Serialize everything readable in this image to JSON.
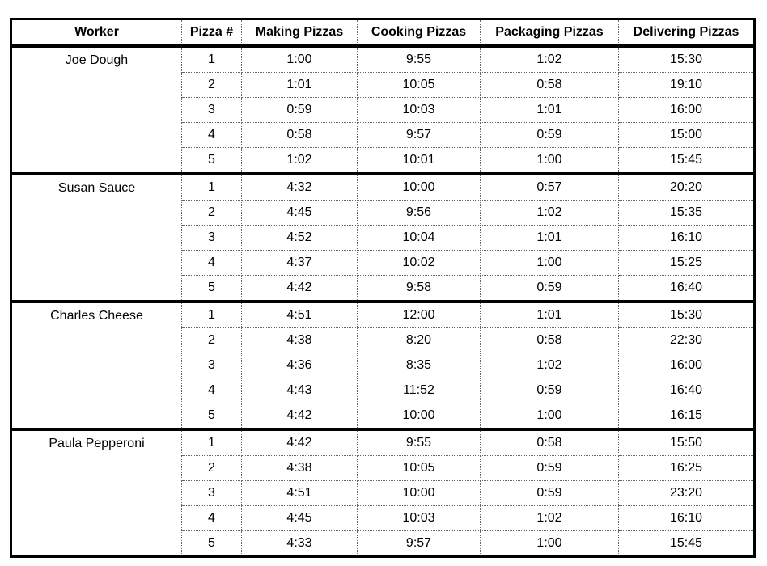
{
  "colors": {
    "background": "#ffffff",
    "text": "#000000",
    "outer_border": "#000000",
    "section_border": "#000000",
    "dotted_gridline": "#666666"
  },
  "chart_data": {
    "type": "table",
    "columns": [
      "Worker",
      "Pizza #",
      "Making Pizzas",
      "Cooking Pizzas",
      "Packaging Pizzas",
      "Delivering Pizzas"
    ],
    "workers": [
      {
        "name": "Joe Dough",
        "rows": [
          {
            "pizza": "1",
            "making": "1:00",
            "cooking": "9:55",
            "packaging": "1:02",
            "delivering": "15:30"
          },
          {
            "pizza": "2",
            "making": "1:01",
            "cooking": "10:05",
            "packaging": "0:58",
            "delivering": "19:10"
          },
          {
            "pizza": "3",
            "making": "0:59",
            "cooking": "10:03",
            "packaging": "1:01",
            "delivering": "16:00"
          },
          {
            "pizza": "4",
            "making": "0:58",
            "cooking": "9:57",
            "packaging": "0:59",
            "delivering": "15:00"
          },
          {
            "pizza": "5",
            "making": "1:02",
            "cooking": "10:01",
            "packaging": "1:00",
            "delivering": "15:45"
          }
        ]
      },
      {
        "name": "Susan Sauce",
        "rows": [
          {
            "pizza": "1",
            "making": "4:32",
            "cooking": "10:00",
            "packaging": "0:57",
            "delivering": "20:20"
          },
          {
            "pizza": "2",
            "making": "4:45",
            "cooking": "9:56",
            "packaging": "1:02",
            "delivering": "15:35"
          },
          {
            "pizza": "3",
            "making": "4:52",
            "cooking": "10:04",
            "packaging": "1:01",
            "delivering": "16:10"
          },
          {
            "pizza": "4",
            "making": "4:37",
            "cooking": "10:02",
            "packaging": "1:00",
            "delivering": "15:25"
          },
          {
            "pizza": "5",
            "making": "4:42",
            "cooking": "9:58",
            "packaging": "0:59",
            "delivering": "16:40"
          }
        ]
      },
      {
        "name": "Charles Cheese",
        "rows": [
          {
            "pizza": "1",
            "making": "4:51",
            "cooking": "12:00",
            "packaging": "1:01",
            "delivering": "15:30"
          },
          {
            "pizza": "2",
            "making": "4:38",
            "cooking": "8:20",
            "packaging": "0:58",
            "delivering": "22:30"
          },
          {
            "pizza": "3",
            "making": "4:36",
            "cooking": "8:35",
            "packaging": "1:02",
            "delivering": "16:00"
          },
          {
            "pizza": "4",
            "making": "4:43",
            "cooking": "11:52",
            "packaging": "0:59",
            "delivering": "16:40"
          },
          {
            "pizza": "5",
            "making": "4:42",
            "cooking": "10:00",
            "packaging": "1:00",
            "delivering": "16:15"
          }
        ]
      },
      {
        "name": "Paula Pepperoni",
        "rows": [
          {
            "pizza": "1",
            "making": "4:42",
            "cooking": "9:55",
            "packaging": "0:58",
            "delivering": "15:50"
          },
          {
            "pizza": "2",
            "making": "4:38",
            "cooking": "10:05",
            "packaging": "0:59",
            "delivering": "16:25"
          },
          {
            "pizza": "3",
            "making": "4:51",
            "cooking": "10:00",
            "packaging": "0:59",
            "delivering": "23:20"
          },
          {
            "pizza": "4",
            "making": "4:45",
            "cooking": "10:03",
            "packaging": "1:02",
            "delivering": "16:10"
          },
          {
            "pizza": "5",
            "making": "4:33",
            "cooking": "9:57",
            "packaging": "1:00",
            "delivering": "15:45"
          }
        ]
      }
    ]
  }
}
